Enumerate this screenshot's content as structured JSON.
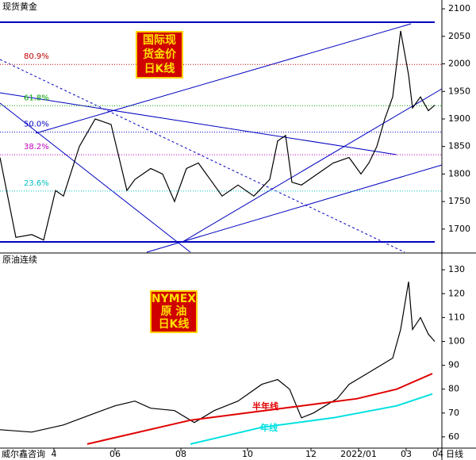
{
  "chart_data": [
    {
      "type": "line",
      "title": "现货黄金",
      "badge": [
        "国际现",
        "货金价",
        "日K线"
      ],
      "x": [
        0,
        10,
        20,
        27.5,
        35,
        40,
        50,
        60,
        70,
        75,
        80,
        85,
        95,
        102.5,
        110,
        117.5,
        125,
        132.5,
        140,
        150,
        160,
        170,
        175,
        180,
        184,
        190,
        200,
        210,
        220,
        227.5,
        232.5,
        237.5,
        242.5,
        247.5,
        252.5,
        257.5,
        260,
        265,
        270,
        274
      ],
      "values": [
        1830,
        1685,
        1690,
        1680,
        1770,
        1760,
        1850,
        1900,
        1890,
        1830,
        1770,
        1790,
        1810,
        1800,
        1750,
        1810,
        1820,
        1790,
        1760,
        1780,
        1760,
        1790,
        1860,
        1870,
        1785,
        1780,
        1800,
        1820,
        1830,
        1800,
        1820,
        1850,
        1900,
        1940,
        2060,
        1980,
        1920,
        1940,
        1915,
        1925
      ],
      "color": "#000000",
      "ylim": [
        1658,
        2116
      ],
      "yticks": [
        1700,
        1750,
        1800,
        1850,
        1900,
        1950,
        2000,
        2050,
        2100
      ],
      "levels": [
        {
          "value": 1999,
          "label": "80.9%",
          "color": "#c00000"
        },
        {
          "value": 1924,
          "label": "61.8%",
          "color": "#00a000"
        },
        {
          "value": 1876,
          "label": "50.0%",
          "color": "#0000c0"
        },
        {
          "value": 1835,
          "label": "38.2%",
          "color": "#c000c0"
        },
        {
          "value": 1769,
          "label": "23.6%",
          "color": "#00c0c0"
        }
      ]
    },
    {
      "type": "line",
      "title": "原油连续",
      "badge": [
        "NYMEX",
        "原 油",
        "日K线"
      ],
      "series": [
        {
          "color": "#000000",
          "x": [
            0,
            20,
            40,
            60,
            72.5,
            85,
            95,
            110,
            122.5,
            135,
            150,
            165,
            175,
            182.5,
            190,
            197.5,
            205,
            212.5,
            220,
            230,
            240,
            247.5,
            252.5,
            257.5,
            260,
            265,
            270,
            274
          ],
          "values": [
            63,
            62,
            65,
            70,
            73,
            75,
            72,
            71,
            66,
            71,
            75,
            82,
            84,
            80,
            68,
            70,
            73,
            76,
            82,
            86,
            90,
            93,
            105,
            125,
            105,
            110,
            103,
            100
          ]
        },
        {
          "name": "半年线",
          "color": "#e00000",
          "x": [
            55,
            120,
            155,
            190,
            225,
            250,
            272.5
          ],
          "values": [
            57,
            67,
            70,
            73,
            76,
            80,
            86.5
          ]
        },
        {
          "name": "年线",
          "color": "#00e0e0",
          "x": [
            120,
            165,
            210,
            250,
            272.5
          ],
          "values": [
            57,
            64,
            68,
            73,
            78
          ]
        }
      ],
      "ylim": [
        55.3,
        136.7
      ],
      "yticks": [
        60,
        70,
        80,
        90,
        100,
        110,
        120,
        130
      ],
      "xlim": [
        0,
        278.5
      ],
      "xticks": [
        {
          "value": 34,
          "label": "4"
        },
        {
          "value": 72.5,
          "label": "06"
        },
        {
          "value": 114,
          "label": "08"
        },
        {
          "value": 156,
          "label": "10"
        },
        {
          "value": 196,
          "label": "12"
        },
        {
          "value": 226,
          "label": "2022/01"
        },
        {
          "value": 256,
          "label": "03"
        },
        {
          "value": 276,
          "label": "04"
        }
      ]
    }
  ],
  "footer": {
    "source": "威尔鑫咨询",
    "period": "日线"
  }
}
